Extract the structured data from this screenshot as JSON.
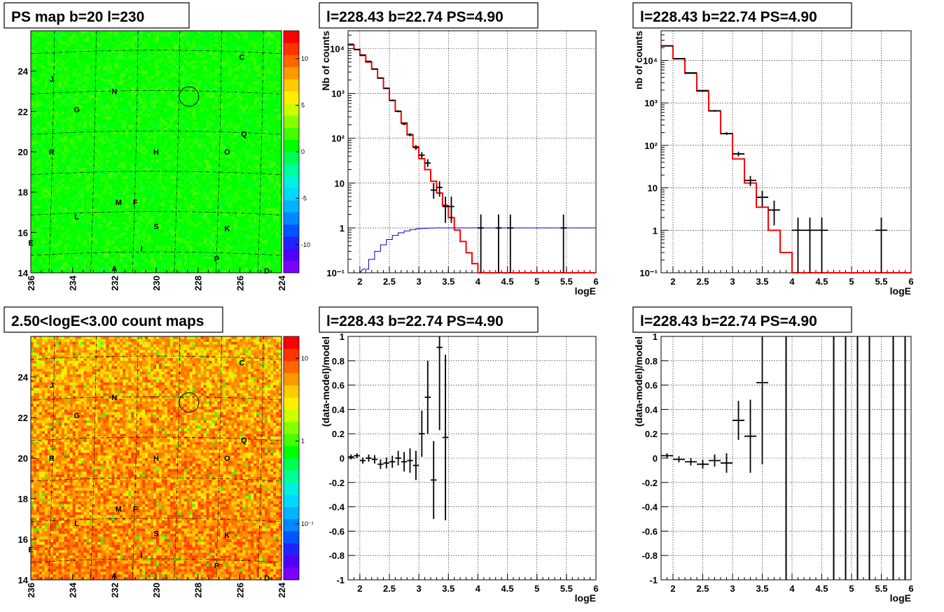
{
  "panels": [
    {
      "id": "ps-map",
      "title": "PS map b=20 l=230",
      "type": "heatmap",
      "xlim": [
        236,
        224
      ],
      "ylim": [
        14,
        26
      ],
      "xticks": [
        "236",
        "234",
        "232",
        "230",
        "228",
        "226",
        "224"
      ],
      "yticks": [
        "14",
        "16",
        "18",
        "20",
        "22",
        "24"
      ],
      "palette_ticks": [
        "10",
        "5",
        "0",
        "-5",
        "-10"
      ],
      "palette_log": false,
      "palette_range": [
        -13,
        13
      ],
      "background": "mostly-green",
      "marker": {
        "l": 228.43,
        "b": 22.74
      }
    },
    {
      "id": "count-map",
      "title": "2.50<logE<3.00 count maps",
      "type": "heatmap",
      "xlim": [
        236,
        224
      ],
      "ylim": [
        14,
        26
      ],
      "xticks": [
        "236",
        "234",
        "232",
        "230",
        "228",
        "226",
        "224"
      ],
      "yticks": [
        "14",
        "16",
        "18",
        "20",
        "22",
        "24"
      ],
      "palette_ticks": [
        "10",
        "1",
        "10⁻¹"
      ],
      "palette_log": true,
      "background": "mostly-orange-red",
      "marker": {
        "l": 228.43,
        "b": 22.74
      }
    }
  ],
  "sources": [
    {
      "label": "C",
      "l": 225.9,
      "b": 24.7
    },
    {
      "label": "J",
      "l": 235.0,
      "b": 23.6
    },
    {
      "label": "N",
      "l": 232.0,
      "b": 23.0
    },
    {
      "label": "G",
      "l": 233.8,
      "b": 22.1
    },
    {
      "label": "Q",
      "l": 225.8,
      "b": 20.9
    },
    {
      "label": "R",
      "l": 235.0,
      "b": 20.0
    },
    {
      "label": "H",
      "l": 230.0,
      "b": 20.0
    },
    {
      "label": "O",
      "l": 226.6,
      "b": 20.0
    },
    {
      "label": "M",
      "l": 231.8,
      "b": 17.5
    },
    {
      "label": "F",
      "l": 231.0,
      "b": 17.5
    },
    {
      "label": "L",
      "l": 233.8,
      "b": 16.8
    },
    {
      "label": "S",
      "l": 230.0,
      "b": 16.3
    },
    {
      "label": "K",
      "l": 226.6,
      "b": 16.2
    },
    {
      "label": "E",
      "l": 236.0,
      "b": 15.5
    },
    {
      "label": "I",
      "l": 230.7,
      "b": 15.2
    },
    {
      "label": "P",
      "l": 227.1,
      "b": 14.7
    },
    {
      "label": "A",
      "l": 232.0,
      "b": 14.2
    },
    {
      "label": "D",
      "l": 224.7,
      "b": 14.1
    }
  ],
  "chart_data": [
    {
      "id": "spectrum-1",
      "type": "line",
      "title": "l=228.43 b=22.74 PS=4.90",
      "xlabel": "logE",
      "ylabel": "Nb of counts",
      "log_y": true,
      "xlim": [
        1.8,
        6
      ],
      "ylim": [
        0.1,
        25000
      ],
      "xticks": [
        "2",
        "2.5",
        "3",
        "3.5",
        "4",
        "4.5",
        "5",
        "5.5",
        "6"
      ],
      "yticks": [
        {
          "v": 0.1,
          "t": "10⁻¹"
        },
        {
          "v": 1,
          "t": "1"
        },
        {
          "v": 10,
          "t": "10"
        },
        {
          "v": 100,
          "t": "10²"
        },
        {
          "v": 1000,
          "t": "10³"
        },
        {
          "v": 10000,
          "t": "10⁴"
        }
      ],
      "model_edges": [
        1.8,
        1.9,
        2.0,
        2.1,
        2.2,
        2.3,
        2.4,
        2.5,
        2.6,
        2.7,
        2.8,
        2.9,
        3.0,
        3.1,
        3.2,
        3.3,
        3.4,
        3.5,
        3.6,
        3.7,
        3.8,
        3.9,
        4.0,
        4.1,
        4.2,
        4.3,
        4.4,
        4.5,
        4.6,
        4.7,
        4.8,
        4.9,
        5.0,
        5.1,
        5.2,
        5.3,
        5.4,
        5.5,
        5.6,
        5.7,
        5.8,
        5.9,
        6.0
      ],
      "model_values": [
        12000,
        9500,
        7000,
        5000,
        3500,
        2200,
        1300,
        700,
        400,
        220,
        120,
        65,
        35,
        20,
        11,
        6,
        3.2,
        1.7,
        0.9,
        0.5,
        0.28,
        0.16,
        0.09,
        0.09,
        0.09,
        0.09,
        0.09,
        0.09,
        0.09,
        0.09,
        0.09,
        0.09,
        0.09,
        0.09,
        0.09,
        0.09,
        0.09,
        0.09,
        0.09,
        0.09,
        0.09,
        0.09
      ],
      "model_color": "#ff0000",
      "efficiency_color": "#0000cc",
      "efficiency_x": [
        2.1,
        2.2,
        2.3,
        2.4,
        2.5,
        2.6,
        2.7,
        2.8,
        2.9,
        3.0,
        3.1,
        3.2,
        3.3
      ],
      "efficiency_y": [
        0.12,
        0.2,
        0.3,
        0.42,
        0.55,
        0.68,
        0.78,
        0.86,
        0.92,
        0.96,
        0.98,
        0.99,
        1.0
      ],
      "data_points": [
        {
          "x": 1.85,
          "y": 12500,
          "lo": 12200,
          "hi": 12800
        },
        {
          "x": 1.95,
          "y": 9500,
          "lo": 9300,
          "hi": 9700
        },
        {
          "x": 2.05,
          "y": 7200,
          "lo": 7000,
          "hi": 7400
        },
        {
          "x": 2.15,
          "y": 5200,
          "lo": 5050,
          "hi": 5350
        },
        {
          "x": 2.25,
          "y": 3500,
          "lo": 3400,
          "hi": 3600
        },
        {
          "x": 2.35,
          "y": 2200,
          "lo": 2120,
          "hi": 2280
        },
        {
          "x": 2.45,
          "y": 1300,
          "lo": 1250,
          "hi": 1350
        },
        {
          "x": 2.55,
          "y": 700,
          "lo": 670,
          "hi": 730
        },
        {
          "x": 2.65,
          "y": 400,
          "lo": 380,
          "hi": 420
        },
        {
          "x": 2.75,
          "y": 210,
          "lo": 196,
          "hi": 224
        },
        {
          "x": 2.85,
          "y": 120,
          "lo": 110,
          "hi": 130
        },
        {
          "x": 2.95,
          "y": 62,
          "lo": 55,
          "hi": 70
        },
        {
          "x": 3.05,
          "y": 42,
          "lo": 36,
          "hi": 49
        },
        {
          "x": 3.15,
          "y": 28,
          "lo": 23,
          "hi": 34
        },
        {
          "x": 3.25,
          "y": 7,
          "lo": 4.5,
          "hi": 10
        },
        {
          "x": 3.35,
          "y": 8,
          "lo": 5,
          "hi": 11
        },
        {
          "x": 3.45,
          "y": 3,
          "lo": 1.3,
          "hi": 5
        },
        {
          "x": 3.55,
          "y": 3,
          "lo": 1.3,
          "hi": 5
        },
        {
          "x": 4.05,
          "y": 1,
          "lo": 0.1,
          "hi": 2
        },
        {
          "x": 4.35,
          "y": 1,
          "lo": 0.1,
          "hi": 2
        },
        {
          "x": 4.55,
          "y": 1,
          "lo": 0.1,
          "hi": 2
        },
        {
          "x": 5.45,
          "y": 1,
          "lo": 0.1,
          "hi": 2
        }
      ]
    },
    {
      "id": "spectrum-2",
      "type": "line",
      "title": "l=228.43 b=22.74 PS=4.90",
      "xlabel": "logE",
      "ylabel": "nb of counts",
      "log_y": true,
      "xlim": [
        1.8,
        6
      ],
      "ylim": [
        0.1,
        50000
      ],
      "xticks": [
        "2",
        "2.5",
        "3",
        "3.5",
        "4",
        "4.5",
        "5",
        "5.5",
        "6"
      ],
      "yticks": [
        {
          "v": 0.1,
          "t": "10⁻¹"
        },
        {
          "v": 1,
          "t": "1"
        },
        {
          "v": 10,
          "t": "10"
        },
        {
          "v": 100,
          "t": "10²"
        },
        {
          "v": 1000,
          "t": "10³"
        },
        {
          "v": 10000,
          "t": "10⁴"
        }
      ],
      "model_edges": [
        1.8,
        2.0,
        2.2,
        2.4,
        2.6,
        2.8,
        3.0,
        3.2,
        3.4,
        3.6,
        3.8,
        4.0,
        4.2,
        4.4,
        4.6,
        4.8,
        5.0,
        5.2,
        5.4,
        5.6,
        5.8,
        6.0
      ],
      "model_values": [
        22000,
        11000,
        5000,
        1900,
        650,
        190,
        48,
        13,
        3.5,
        1.0,
        0.3,
        0.1,
        0.09,
        0.09,
        0.09,
        0.09,
        0.09,
        0.09,
        0.09,
        0.09,
        0.09
      ],
      "model_color": "#ff0000",
      "data_points": [
        {
          "x": 1.9,
          "y": 22000,
          "lo": 21500,
          "hi": 22500
        },
        {
          "x": 2.1,
          "y": 11000,
          "lo": 10700,
          "hi": 11300
        },
        {
          "x": 2.3,
          "y": 5100,
          "lo": 4950,
          "hi": 5250
        },
        {
          "x": 2.5,
          "y": 1950,
          "lo": 1880,
          "hi": 2020
        },
        {
          "x": 2.7,
          "y": 650,
          "lo": 620,
          "hi": 680
        },
        {
          "x": 2.9,
          "y": 190,
          "lo": 176,
          "hi": 204
        },
        {
          "x": 3.1,
          "y": 63,
          "lo": 55,
          "hi": 71
        },
        {
          "x": 3.3,
          "y": 15,
          "lo": 11,
          "hi": 19
        },
        {
          "x": 3.5,
          "y": 6,
          "lo": 3.6,
          "hi": 8.5
        },
        {
          "x": 3.7,
          "y": 3,
          "lo": 1.3,
          "hi": 5
        },
        {
          "x": 4.1,
          "y": 1,
          "lo": 0.1,
          "hi": 2
        },
        {
          "x": 4.3,
          "y": 1,
          "lo": 0.1,
          "hi": 2
        },
        {
          "x": 4.5,
          "y": 1,
          "lo": 0.1,
          "hi": 2
        },
        {
          "x": 5.5,
          "y": 1,
          "lo": 0.1,
          "hi": 2
        }
      ]
    },
    {
      "id": "residual-1",
      "type": "scatter",
      "title": "l=228.43 b=22.74 PS=4.90",
      "xlabel": "logE",
      "ylabel": "(data-model)/model",
      "xlim": [
        1.8,
        6
      ],
      "ylim": [
        -1,
        1
      ],
      "xticks": [
        "2",
        "2.5",
        "3",
        "3.5",
        "4",
        "4.5",
        "5",
        "5.5",
        "6"
      ],
      "yticks": [
        "-1",
        "-0.8",
        "-0.6",
        "-0.4",
        "-0.2",
        "0",
        "0.2",
        "0.4",
        "0.6",
        "0.8",
        "1"
      ],
      "xerr": 0.05,
      "points": [
        {
          "x": 1.85,
          "y": 0.01,
          "e": 0.02
        },
        {
          "x": 1.95,
          "y": 0.02,
          "e": 0.02
        },
        {
          "x": 2.05,
          "y": -0.02,
          "e": 0.025
        },
        {
          "x": 2.15,
          "y": 0.0,
          "e": 0.03
        },
        {
          "x": 2.25,
          "y": -0.01,
          "e": 0.035
        },
        {
          "x": 2.35,
          "y": -0.05,
          "e": 0.04
        },
        {
          "x": 2.45,
          "y": -0.04,
          "e": 0.045
        },
        {
          "x": 2.55,
          "y": -0.03,
          "e": 0.05
        },
        {
          "x": 2.65,
          "y": 0.0,
          "e": 0.06
        },
        {
          "x": 2.75,
          "y": -0.03,
          "e": 0.08
        },
        {
          "x": 2.85,
          "y": -0.02,
          "e": 0.1
        },
        {
          "x": 2.95,
          "y": -0.06,
          "e": 0.12
        },
        {
          "x": 3.05,
          "y": 0.2,
          "e": 0.19
        },
        {
          "x": 3.15,
          "y": 0.5,
          "e": 0.3
        },
        {
          "x": 3.25,
          "y": -0.18,
          "e": 0.32
        },
        {
          "x": 3.35,
          "y": 0.91,
          "e": 0.68
        },
        {
          "x": 3.45,
          "y": 0.17,
          "e": 0.68
        }
      ]
    },
    {
      "id": "residual-2",
      "type": "scatter",
      "title": "l=228.43 b=22.74 PS=4.90",
      "xlabel": "logE",
      "ylabel": "(data-model)/model",
      "xlim": [
        1.8,
        6
      ],
      "ylim": [
        -1,
        1
      ],
      "xticks": [
        "2",
        "2.5",
        "3",
        "3.5",
        "4",
        "4.5",
        "5",
        "5.5",
        "6"
      ],
      "yticks": [
        "-1",
        "-0.8",
        "-0.6",
        "-0.4",
        "-0.2",
        "0",
        "0.2",
        "0.4",
        "0.6",
        "0.8",
        "1"
      ],
      "xerr": 0.1,
      "points": [
        {
          "x": 1.9,
          "y": 0.02,
          "e": 0.02
        },
        {
          "x": 2.1,
          "y": -0.01,
          "e": 0.025
        },
        {
          "x": 2.3,
          "y": -0.03,
          "e": 0.03
        },
        {
          "x": 2.5,
          "y": -0.05,
          "e": 0.035
        },
        {
          "x": 2.7,
          "y": -0.02,
          "e": 0.05
        },
        {
          "x": 2.9,
          "y": -0.04,
          "e": 0.08
        },
        {
          "x": 3.1,
          "y": 0.31,
          "e": 0.16
        },
        {
          "x": 3.3,
          "y": 0.18,
          "e": 0.3
        },
        {
          "x": 3.5,
          "y": 0.62,
          "e": 0.67
        }
      ],
      "vertical_bars_x": [
        3.9,
        4.7,
        4.9,
        5.1,
        5.3,
        5.7,
        5.9
      ]
    }
  ]
}
